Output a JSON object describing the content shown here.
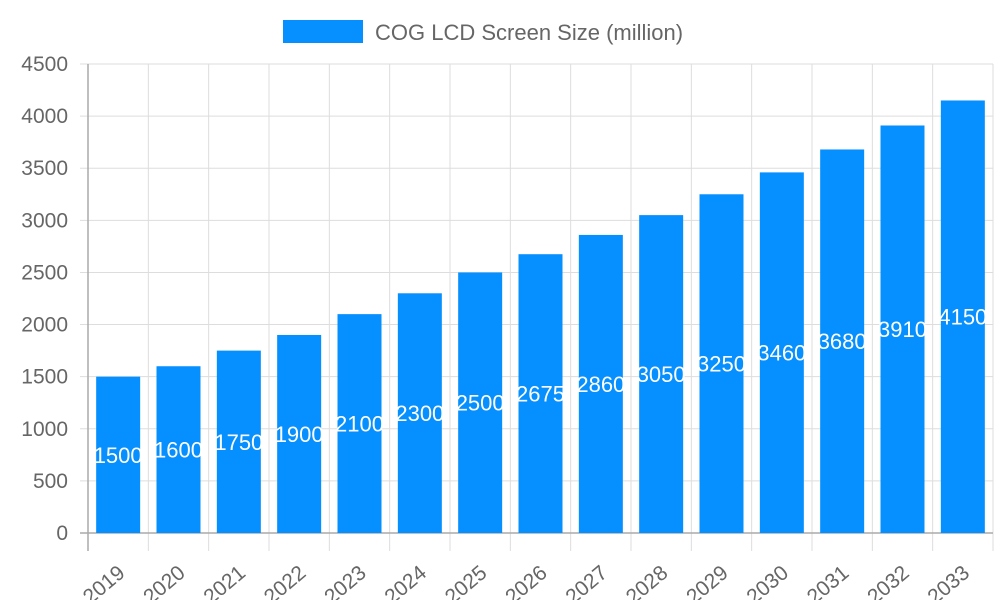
{
  "chart_data": {
    "type": "bar",
    "title": "",
    "xlabel": "",
    "ylabel": "",
    "categories": [
      "2019",
      "2020",
      "2021",
      "2022",
      "2023",
      "2024",
      "2025",
      "2026",
      "2027",
      "2028",
      "2029",
      "2030",
      "2031",
      "2032",
      "2033"
    ],
    "series": [
      {
        "name": "COG LCD Screen Size (million)",
        "values": [
          1500,
          1600,
          1750,
          1900,
          2100,
          2300,
          2500,
          2675,
          2860,
          3050,
          3250,
          3460,
          3680,
          3910,
          4150
        ],
        "color": "#068ffe"
      }
    ],
    "ylim": [
      0,
      4500
    ],
    "yticks": [
      0,
      500,
      1000,
      1500,
      2000,
      2500,
      3000,
      3500,
      4000,
      4500
    ],
    "grid": true,
    "legend": "top",
    "data_labels": true,
    "data_label_color": "#ffffff"
  }
}
